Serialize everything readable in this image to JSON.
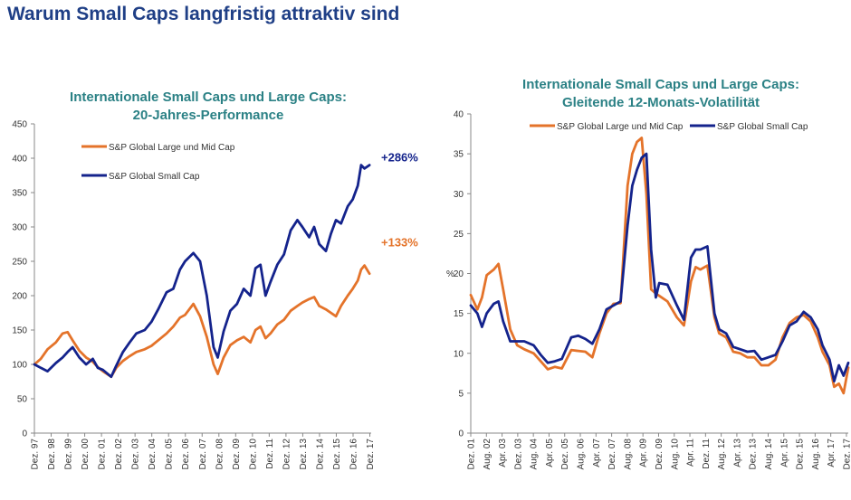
{
  "page_title": "Warum Small Caps langfristig attraktiv sind",
  "colors": {
    "orange": "#e4732a",
    "navy": "#14238c",
    "title": "#1f3f86",
    "teal": "#2b8185"
  },
  "chart_data": [
    {
      "type": "line",
      "title": "Internationale Small Caps und Large Caps:",
      "subtitle": "20-Jahres-Performance",
      "ylim": [
        0,
        450
      ],
      "y_ticks": [
        "0",
        "50",
        "100",
        "150",
        "200",
        "250",
        "300",
        "350",
        "400",
        "450"
      ],
      "x_tick_labels": [
        "Dez. 97",
        "Dez. 98",
        "Dez. 99",
        "Dez. 00",
        "Dez. 01",
        "Dez. 02",
        "Dez. 03",
        "Dez. 04",
        "Dez. 05",
        "Dez. 06",
        "Dez. 07",
        "Dez. 08",
        "Dez. 09",
        "Dez. 10",
        "Dez. 11",
        "Dez. 12",
        "Dez. 13",
        "Dez. 14",
        "Dez. 15",
        "Dez. 16",
        "Dez. 17"
      ],
      "x": [
        1997.92,
        1998.3,
        1998.7,
        1999.2,
        1999.6,
        1999.9,
        2000.2,
        2000.6,
        2001.0,
        2001.4,
        2001.7,
        2002.0,
        2002.5,
        2002.8,
        2003.2,
        2003.6,
        2004.0,
        2004.5,
        2004.9,
        2005.3,
        2005.8,
        2006.2,
        2006.6,
        2006.9,
        2007.4,
        2007.8,
        2008.2,
        2008.6,
        2008.85,
        2009.2,
        2009.6,
        2010.0,
        2010.4,
        2010.8,
        2011.1,
        2011.4,
        2011.7,
        2012.0,
        2012.4,
        2012.8,
        2013.2,
        2013.6,
        2013.9,
        2014.3,
        2014.6,
        2014.9,
        2015.3,
        2015.6,
        2015.9,
        2016.2,
        2016.6,
        2016.9,
        2017.2,
        2017.4,
        2017.6,
        2017.9
      ],
      "legend": [
        "S&P Global Large und Mid Cap",
        "S&P Global Small Cap"
      ],
      "series": [
        {
          "name": "S&P Global Large und Mid Cap",
          "color": "#e4732a",
          "end_label": "+133%",
          "values": [
            100,
            108,
            122,
            132,
            145,
            147,
            135,
            120,
            110,
            104,
            96,
            90,
            82,
            95,
            105,
            112,
            118,
            122,
            127,
            135,
            145,
            155,
            168,
            172,
            188,
            170,
            140,
            100,
            86,
            110,
            128,
            135,
            140,
            132,
            150,
            155,
            138,
            145,
            158,
            165,
            178,
            185,
            190,
            195,
            198,
            185,
            180,
            175,
            170,
            185,
            200,
            210,
            222,
            238,
            244,
            232
          ]
        },
        {
          "name": "S&P Global Small Cap",
          "color": "#14238c",
          "end_label": "+286%",
          "values": [
            100,
            95,
            90,
            102,
            110,
            118,
            125,
            110,
            100,
            108,
            95,
            92,
            82,
            98,
            118,
            132,
            145,
            150,
            162,
            180,
            205,
            210,
            238,
            250,
            262,
            250,
            200,
            125,
            110,
            148,
            178,
            188,
            210,
            200,
            240,
            245,
            200,
            220,
            245,
            260,
            295,
            310,
            300,
            285,
            300,
            275,
            265,
            290,
            310,
            305,
            330,
            340,
            360,
            390,
            385,
            390
          ]
        }
      ]
    },
    {
      "type": "line",
      "title": "Internationale Small Caps und Large Caps:",
      "subtitle": "Gleitende 12-Monats-Volatilität",
      "ylabel": "%",
      "ylim": [
        0,
        40
      ],
      "y_ticks": [
        "0",
        "5",
        "10",
        "15",
        "20",
        "25",
        "30",
        "35",
        "40"
      ],
      "x_tick_labels": [
        "Dez. 01",
        "Aug. 02",
        "Apr. 03",
        "Dez. 03",
        "Aug. 04",
        "Apr. 05",
        "Dez. 05",
        "Aug. 06",
        "Apr. 07",
        "Dez. 07",
        "Aug. 08",
        "Apr. 09",
        "Dez. 09",
        "Aug. 10",
        "Apr. 11",
        "Dez. 11",
        "Aug. 12",
        "Apr. 13",
        "Dez. 13",
        "Aug. 14",
        "Apr. 15",
        "Dez. 15",
        "Aug. 16",
        "Apr. 17",
        "Dez. 17"
      ],
      "x": [
        2001.92,
        2002.2,
        2002.4,
        2002.6,
        2002.9,
        2003.1,
        2003.3,
        2003.6,
        2003.9,
        2004.2,
        2004.6,
        2004.9,
        2005.2,
        2005.5,
        2005.8,
        2006.2,
        2006.5,
        2006.8,
        2007.1,
        2007.4,
        2007.7,
        2008.0,
        2008.3,
        2008.6,
        2008.8,
        2009.0,
        2009.2,
        2009.4,
        2009.6,
        2009.8,
        2009.95,
        2010.3,
        2010.7,
        2011.0,
        2011.3,
        2011.5,
        2011.7,
        2012.0,
        2012.3,
        2012.5,
        2012.8,
        2013.1,
        2013.4,
        2013.7,
        2014.0,
        2014.3,
        2014.6,
        2014.9,
        2015.2,
        2015.5,
        2015.8,
        2016.1,
        2016.4,
        2016.7,
        2016.9,
        2017.2,
        2017.4,
        2017.6,
        2017.8,
        2018.0
      ],
      "legend": [
        "S&P Global Large und Mid Cap",
        "S&P Global Small Cap"
      ],
      "series": [
        {
          "name": "S&P Global Large und Mid Cap",
          "color": "#e4732a",
          "values": [
            17.3,
            15.5,
            17.0,
            19.8,
            20.5,
            21.2,
            18.0,
            13.0,
            11.0,
            10.5,
            10.0,
            9.0,
            8.0,
            8.3,
            8.1,
            10.4,
            10.3,
            10.2,
            9.5,
            12.5,
            15.0,
            16.2,
            16.3,
            31.0,
            35.0,
            36.5,
            37.0,
            30.0,
            18.0,
            17.5,
            17.2,
            16.5,
            14.5,
            13.5,
            19.0,
            20.8,
            20.5,
            21.0,
            14.5,
            12.5,
            12.0,
            10.2,
            10.0,
            9.5,
            9.5,
            8.5,
            8.5,
            9.2,
            12.0,
            13.8,
            14.5,
            14.8,
            14.0,
            12.0,
            10.2,
            8.5,
            5.8,
            6.2,
            5.0,
            8.2
          ]
        },
        {
          "name": "S&P Global Small Cap",
          "color": "#14238c",
          "values": [
            16.0,
            15.0,
            13.3,
            15.0,
            16.2,
            16.5,
            14.0,
            11.5,
            11.5,
            11.5,
            11.0,
            9.8,
            8.8,
            9.0,
            9.3,
            12.0,
            12.2,
            11.8,
            11.2,
            13.0,
            15.5,
            16.0,
            16.5,
            26.0,
            31.0,
            33.0,
            34.5,
            35.0,
            23.0,
            17.0,
            18.8,
            18.6,
            16.0,
            14.2,
            22.0,
            23.0,
            23.0,
            23.4,
            15.0,
            13.0,
            12.5,
            10.8,
            10.5,
            10.2,
            10.3,
            9.2,
            9.5,
            9.8,
            11.5,
            13.5,
            14.0,
            15.2,
            14.5,
            13.0,
            11.0,
            9.2,
            6.5,
            8.5,
            7.2,
            8.8
          ]
        }
      ]
    }
  ]
}
